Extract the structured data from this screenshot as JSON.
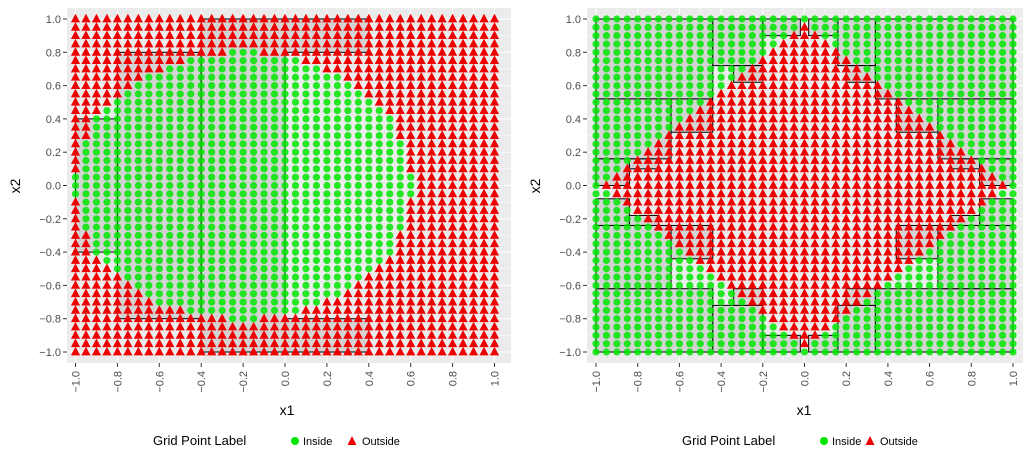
{
  "colors": {
    "inside": "#00e600",
    "outside": "#ee0000",
    "panel_bg": "#ebebeb",
    "grid": "#ffffff",
    "box_fill": "#c0c0c0",
    "box_stroke": "#000000"
  },
  "legend": {
    "title": "Grid Point Label",
    "items": [
      "Inside",
      "Outside"
    ],
    "placement": "bottom"
  },
  "chart_data": [
    {
      "type": "scatter",
      "xlabel": "x1",
      "ylabel": "x2",
      "xlim": [
        -1.0,
        1.0
      ],
      "ylim": [
        -1.0,
        1.0
      ],
      "x_ticks": [
        "-1.0",
        "-0.8",
        "-0.6",
        "-0.4",
        "-0.2",
        "0.0",
        "0.2",
        "0.4",
        "0.6",
        "0.8",
        "1.0"
      ],
      "y_ticks": [
        "-1.0",
        "-0.8",
        "-0.6",
        "-0.4",
        "-0.2",
        "0.0",
        "0.2",
        "0.4",
        "0.6",
        "0.8",
        "1.0"
      ],
      "grid": true,
      "grid_step": 0.05,
      "inside_region": "(x1 + 0.2)^2 + x2^2 <= 0.65",
      "series": [
        {
          "name": "Inside",
          "marker": "circle",
          "color": "#00e600"
        },
        {
          "name": "Outside",
          "marker": "triangle",
          "color": "#ee0000"
        }
      ],
      "boxes": [
        [
          -1.0,
          -0.8,
          -0.4,
          0.4
        ],
        [
          -0.8,
          -0.4,
          -0.8,
          0.8
        ],
        [
          -0.4,
          0.0,
          -1.0,
          1.0
        ],
        [
          0.0,
          0.4,
          -1.0,
          -0.8
        ],
        [
          0.0,
          0.4,
          0.8,
          1.0
        ]
      ]
    },
    {
      "type": "scatter",
      "xlabel": "x1",
      "ylabel": "x2",
      "xlim": [
        -1.0,
        1.0
      ],
      "ylim": [
        -1.0,
        1.0
      ],
      "x_ticks": [
        "-1.0",
        "-0.8",
        "-0.6",
        "-0.4",
        "-0.2",
        "0.0",
        "0.2",
        "0.4",
        "0.6",
        "0.8",
        "1.0"
      ],
      "y_ticks": [
        "-1.0",
        "-0.8",
        "-0.6",
        "-0.4",
        "-0.2",
        "0.0",
        "0.2",
        "0.4",
        "0.6",
        "0.8",
        "1.0"
      ],
      "grid": true,
      "grid_step": 0.05,
      "inside_region": "|x1| + |x2| > 0.96",
      "series": [
        {
          "name": "Inside",
          "marker": "circle",
          "color": "#00e600"
        },
        {
          "name": "Outside",
          "marker": "triangle",
          "color": "#ee0000"
        }
      ],
      "boxes": [
        [
          -1.0,
          -0.44,
          0.52,
          1.0
        ],
        [
          0.34,
          1.0,
          0.52,
          1.0
        ],
        [
          -1.0,
          -0.44,
          -1.0,
          -0.62
        ],
        [
          0.34,
          1.0,
          -1.0,
          -0.62
        ],
        [
          -1.0,
          -0.64,
          0.16,
          0.52
        ],
        [
          0.64,
          1.0,
          0.16,
          0.52
        ],
        [
          -1.0,
          -0.64,
          -0.62,
          -0.24
        ],
        [
          0.64,
          1.0,
          -0.62,
          -0.24
        ],
        [
          -0.44,
          -0.2,
          0.72,
          1.0
        ],
        [
          0.16,
          0.34,
          0.72,
          1.0
        ],
        [
          -0.44,
          -0.2,
          -1.0,
          -0.72
        ],
        [
          0.16,
          0.34,
          -1.0,
          -0.72
        ],
        [
          -0.2,
          -0.02,
          0.9,
          1.0
        ],
        [
          0.02,
          0.16,
          0.9,
          1.0
        ],
        [
          -0.2,
          -0.02,
          -1.0,
          -0.9
        ],
        [
          0.02,
          0.16,
          -1.0,
          -0.9
        ],
        [
          -0.64,
          -0.44,
          0.32,
          0.52
        ],
        [
          0.44,
          0.64,
          0.32,
          0.52
        ],
        [
          -0.64,
          -0.44,
          -0.44,
          -0.24
        ],
        [
          0.44,
          0.64,
          -0.44,
          -0.24
        ],
        [
          -1.0,
          -0.84,
          0.0,
          0.16
        ],
        [
          0.84,
          1.0,
          0.0,
          0.16
        ],
        [
          -1.0,
          -0.84,
          -0.24,
          -0.08
        ],
        [
          0.84,
          1.0,
          -0.24,
          -0.08
        ],
        [
          -0.34,
          -0.2,
          0.62,
          0.72
        ],
        [
          0.2,
          0.34,
          0.62,
          0.72
        ],
        [
          -0.34,
          -0.2,
          -0.72,
          -0.62
        ],
        [
          0.2,
          0.34,
          -0.72,
          -0.62
        ],
        [
          -0.84,
          -0.7,
          0.1,
          0.16
        ],
        [
          0.7,
          0.84,
          0.1,
          0.16
        ],
        [
          -0.84,
          -0.7,
          -0.24,
          -0.18
        ],
        [
          0.7,
          0.84,
          -0.24,
          -0.18
        ]
      ]
    }
  ]
}
